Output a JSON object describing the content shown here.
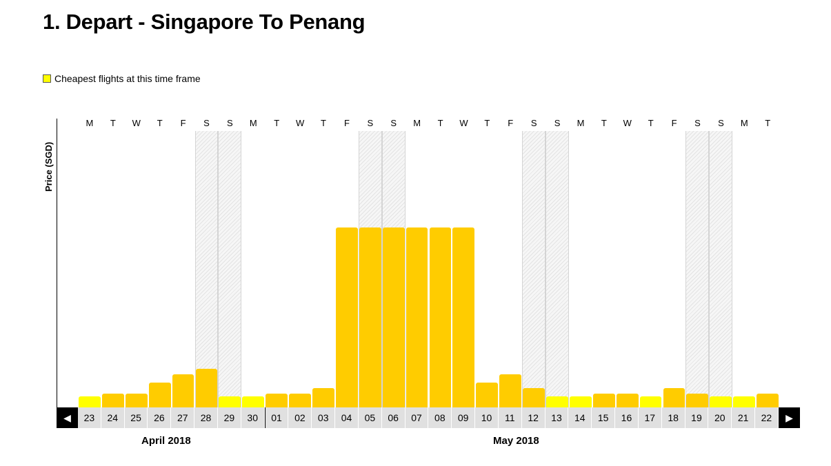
{
  "header": {
    "title": "1. Depart - Singapore To Penang"
  },
  "legend": {
    "label": "Cheapest flights at this time frame",
    "swatch_color": "#ffff00"
  },
  "colors": {
    "bar": "#ffcc00",
    "cheapest": "#ffff00",
    "weekend_hatch": "#e3e3e3",
    "date_cell": "#e0e0e0",
    "nav_button": "#000000"
  },
  "navigation": {
    "prev_icon": "triangle-left-icon",
    "next_icon": "triangle-right-icon"
  },
  "chart_data": {
    "type": "bar",
    "ylabel": "Price (SGD)",
    "xlabel": "",
    "months": [
      "April 2018",
      "May 2018"
    ],
    "weekdays": [
      "M",
      "T",
      "W",
      "T",
      "F",
      "S",
      "S",
      "M",
      "T",
      "W",
      "T",
      "F",
      "S",
      "S",
      "M",
      "T",
      "W",
      "T",
      "F",
      "S",
      "S",
      "M",
      "T",
      "W",
      "T",
      "F",
      "S",
      "S",
      "M",
      "T"
    ],
    "categories": [
      "23",
      "24",
      "25",
      "26",
      "27",
      "28",
      "29",
      "30",
      "01",
      "02",
      "03",
      "04",
      "05",
      "06",
      "07",
      "08",
      "09",
      "10",
      "11",
      "12",
      "13",
      "14",
      "15",
      "16",
      "17",
      "18",
      "19",
      "20",
      "21",
      "22"
    ],
    "weekend": [
      false,
      false,
      false,
      false,
      false,
      true,
      true,
      false,
      false,
      false,
      false,
      false,
      true,
      true,
      false,
      false,
      false,
      false,
      false,
      true,
      true,
      false,
      false,
      false,
      false,
      false,
      true,
      true,
      false,
      false
    ],
    "cheapest": [
      true,
      false,
      false,
      false,
      false,
      false,
      true,
      true,
      false,
      false,
      false,
      false,
      false,
      false,
      false,
      false,
      false,
      false,
      false,
      false,
      true,
      true,
      false,
      false,
      true,
      false,
      false,
      true,
      true,
      false
    ],
    "values": [
      16,
      20,
      20,
      36,
      48,
      56,
      16,
      16,
      20,
      20,
      28,
      260,
      260,
      260,
      260,
      260,
      260,
      36,
      48,
      28,
      16,
      16,
      20,
      20,
      16,
      28,
      20,
      16,
      16,
      20
    ],
    "ylim": [
      0,
      400
    ],
    "yticks_shown": false
  }
}
